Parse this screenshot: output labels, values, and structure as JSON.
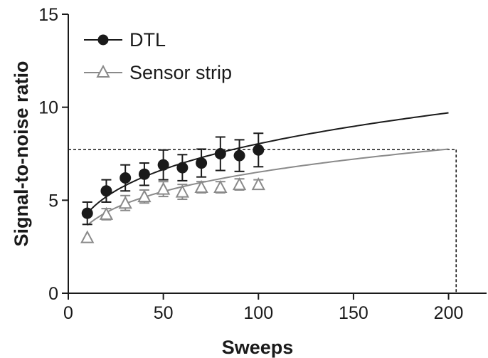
{
  "chart_data": {
    "type": "scatter",
    "xlabel": "Sweeps",
    "ylabel": "Signal-to-noise ratio",
    "xlim": [
      0,
      220
    ],
    "ylim": [
      0,
      15
    ],
    "xticks": [
      0,
      50,
      100,
      150,
      200
    ],
    "yticks": [
      0,
      5,
      10,
      15
    ],
    "legend_position": "top-left",
    "series": [
      {
        "name": "DTL",
        "color": "#1a1a1a",
        "marker": "filled-circle",
        "x": [
          10,
          20,
          30,
          40,
          50,
          60,
          70,
          80,
          90,
          100
        ],
        "y": [
          4.3,
          5.5,
          6.2,
          6.4,
          6.9,
          6.75,
          7.0,
          7.5,
          7.4,
          7.7
        ],
        "error": [
          0.6,
          0.6,
          0.7,
          0.6,
          0.8,
          0.7,
          0.75,
          0.9,
          0.85,
          0.9
        ],
        "fit": {
          "x_end": 200,
          "y_end": 9.7
        }
      },
      {
        "name": "Sensor strip",
        "color": "#8a8a8a",
        "marker": "open-triangle",
        "x": [
          10,
          20,
          30,
          40,
          50,
          60,
          70,
          80,
          90,
          100
        ],
        "y": [
          3.0,
          4.25,
          4.85,
          5.2,
          5.6,
          5.45,
          5.7,
          5.7,
          5.85,
          5.85
        ],
        "error": [
          0,
          0.3,
          0.4,
          0.35,
          0.4,
          0.4,
          0.3,
          0.3,
          0.3,
          0.25
        ],
        "fit": {
          "x_end": 200,
          "y_end": 7.75
        }
      }
    ],
    "reference_lines": {
      "y": 7.72,
      "x": 204
    }
  }
}
